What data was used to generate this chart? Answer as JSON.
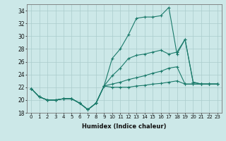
{
  "xlabel": "Humidex (Indice chaleur)",
  "ylabel": "",
  "bg_color": "#cce8e8",
  "grid_color": "#aacccc",
  "line_color": "#1a7a6a",
  "xlim": [
    -0.5,
    23.5
  ],
  "ylim": [
    18,
    35
  ],
  "xticks": [
    0,
    1,
    2,
    3,
    4,
    5,
    6,
    7,
    8,
    9,
    10,
    11,
    12,
    13,
    14,
    15,
    16,
    17,
    18,
    19,
    20,
    21,
    22,
    23
  ],
  "yticks": [
    18,
    20,
    22,
    24,
    26,
    28,
    30,
    32,
    34
  ],
  "series": [
    [
      21.8,
      20.5,
      20.0,
      20.0,
      20.2,
      20.2,
      19.5,
      18.5,
      19.5,
      22.2,
      26.5,
      28.0,
      30.2,
      32.8,
      33.0,
      33.0,
      33.2,
      34.5,
      27.2,
      29.5,
      22.8,
      22.5,
      22.5,
      22.5
    ],
    [
      21.8,
      20.5,
      20.0,
      20.0,
      20.2,
      20.2,
      19.5,
      18.5,
      19.5,
      22.2,
      23.8,
      25.0,
      26.5,
      27.0,
      27.2,
      27.5,
      27.8,
      27.2,
      27.5,
      29.5,
      22.8,
      22.5,
      22.5,
      22.5
    ],
    [
      21.8,
      20.5,
      20.0,
      20.0,
      20.2,
      20.2,
      19.5,
      18.5,
      19.5,
      22.2,
      22.5,
      22.8,
      23.2,
      23.5,
      23.8,
      24.2,
      24.5,
      25.0,
      25.2,
      22.5,
      22.5,
      22.5,
      22.5,
      22.5
    ],
    [
      21.8,
      20.5,
      20.0,
      20.0,
      20.2,
      20.2,
      19.5,
      18.5,
      19.5,
      22.2,
      22.0,
      22.0,
      22.0,
      22.2,
      22.3,
      22.5,
      22.6,
      22.8,
      23.0,
      22.5,
      22.5,
      22.5,
      22.5,
      22.5
    ]
  ]
}
